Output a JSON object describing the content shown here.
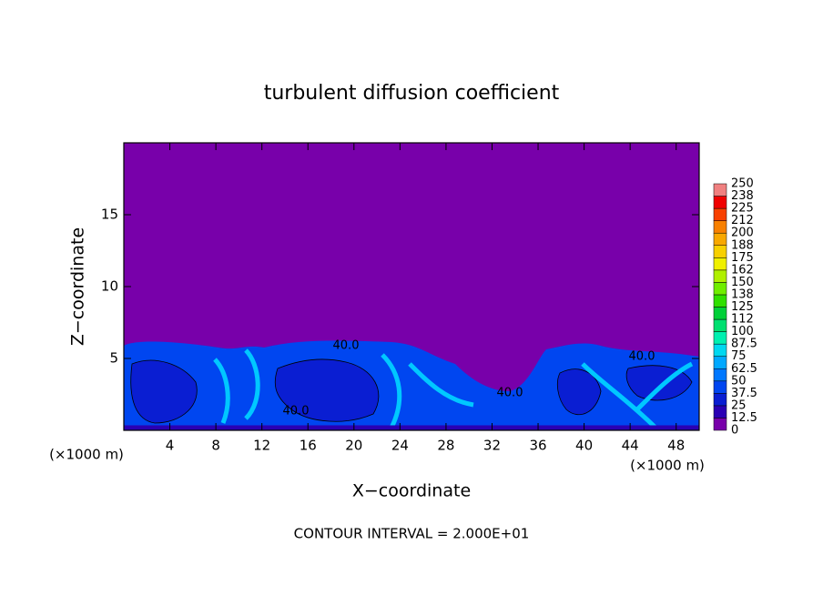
{
  "chart_data": {
    "type": "contour",
    "title": "turbulent diffusion coefficient",
    "xlabel": "X−coordinate",
    "ylabel": "Z−coordinate",
    "x_unit": "(×1000 m)",
    "footer": "CONTOUR INTERVAL = 2.000E+01",
    "xlim": [
      0,
      50
    ],
    "xticks": [
      4,
      8,
      12,
      16,
      20,
      24,
      28,
      32,
      36,
      40,
      44,
      48
    ],
    "ylim": [
      0,
      20
    ],
    "yticks": [
      5,
      10,
      15
    ],
    "annotations": [
      "40.0",
      "40.0",
      "40.0",
      "40.0"
    ],
    "levels": [
      0,
      12.5,
      25,
      37.5,
      50,
      62.5,
      75,
      87.5,
      100,
      {
        "value": 112.5,
        "label": "112"
      },
      125,
      {
        "value": 137.5,
        "label": "138"
      },
      150,
      {
        "value": 162.5,
        "label": "162"
      },
      175,
      {
        "value": 187.5,
        "label": "188"
      },
      200,
      {
        "value": 212.5,
        "label": "212"
      },
      225,
      {
        "value": 237.5,
        "label": "238"
      },
      250
    ],
    "level_colors": [
      "#7800aa",
      "#2a00b4",
      "#0a1ed2",
      "#0046f0",
      "#0078ff",
      "#00a8ff",
      "#00d8f0",
      "#00f0b0",
      "#00e070",
      "#00d038",
      "#30e000",
      "#70ee00",
      "#b0f000",
      "#f0f000",
      "#f8d000",
      "#f8a800",
      "#f88000",
      "#f84000",
      "#f00000",
      "#f08080"
    ]
  }
}
